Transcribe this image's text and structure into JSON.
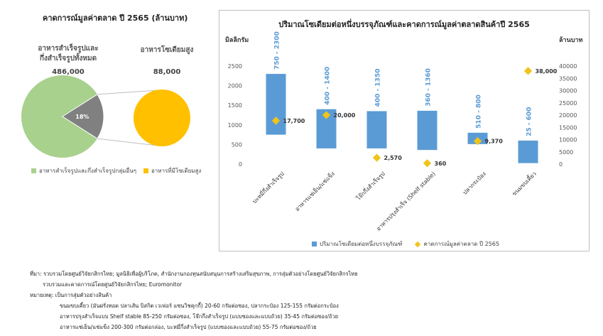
{
  "left": {
    "title": "คาดการณ์มูลค่าตลาด ปี 2565 (ล้านบาท)",
    "cat1_label_line1": "อาหารสำเร็จรูปและ",
    "cat1_label_line2": "กึ่งสำเร็จรูปทั้งหมด",
    "cat1_value": "486,000",
    "cat2_label": "อาหารโซเดียมสูง",
    "cat2_value": "88,000",
    "pie_slice_label": "18%",
    "legend": [
      {
        "label": "อาหารสำเร็จรูปและกึ่งสำเร็จรูปกลุ่มอื่นๆ",
        "color": "#a9d18e"
      },
      {
        "label": "อาหารที่มีโซเดียมสูง",
        "color": "#ffc000"
      }
    ],
    "colors": {
      "green": "#a9d18e",
      "gray": "#808080",
      "yellow": "#ffc000"
    }
  },
  "chart_data": {
    "type": "bar",
    "title": "ปริมาณโซเดียมต่อหนึ่งบรรจุภัณฑ์และคาดการณ์มูลค่าตลาดสินค้าปี 2565",
    "ylabel": "มิลลิกรัม",
    "y2label": "ล้านบาท",
    "ylim": [
      0,
      2500
    ],
    "y_ticks": [
      0,
      500,
      1000,
      1500,
      2000,
      2500
    ],
    "y2lim": [
      0,
      40000
    ],
    "y2_ticks": [
      0,
      5000,
      10000,
      15000,
      20000,
      25000,
      30000,
      35000,
      40000
    ],
    "categories": [
      "บะหมี่กึ่งสำเร็จรูป",
      "อาหารแช่เย็น/แช่แข็ง",
      "โจ๊กกึ่งสำเร็จรูป",
      "อาหารปรุงสำเร็จ (Shelf stable)",
      "ปลากระป๋อง",
      "ขนมขบเคี้ยว"
    ],
    "series": [
      {
        "name": "ปริมาณโซเดียมต่อหนึ่งบรรจุภัณฑ์",
        "type": "floating-bar",
        "low": [
          750,
          400,
          400,
          360,
          510,
          25
        ],
        "high": [
          2300,
          1400,
          1350,
          1360,
          800,
          600
        ],
        "range_labels": [
          "750 - 2300",
          "400 - 1400",
          "400 - 1350",
          "360 - 1360",
          "510 - 800",
          "25 - 600"
        ],
        "color": "#5b9bd5"
      },
      {
        "name": "คาดการณ์มูลค่าตลาด ปี 2565",
        "type": "scatter",
        "axis": "right",
        "values": [
          17700,
          20000,
          2570,
          360,
          9370,
          38000
        ],
        "value_labels": [
          "17,700",
          "20,000",
          "2,570",
          "360",
          "9,370",
          "38,000"
        ],
        "color": "#f0c419"
      }
    ],
    "grid": false,
    "legend_position": "bottom"
  },
  "notes": {
    "line1": "ที่มา: รวบรวมโดยศูนย์วิจัยกสิกรไทย; มูลนิธิเพื่อผู้บริโภค, สำนักงานกองทุนสนับสนุนการสร้างเสริมสุขภาพ, การสุ่มตัวอย่างโดยศูนย์วิจัยกสิกรไทย",
    "line2": "รวบรวมและคาดการณ์โดยศูนย์วิจัยกสิกรไทย; Euromonitor",
    "line3": "หมายเหตุ: เป็นการสุ่มตัวอย่างสินค้า",
    "line4": "ขนมขบเคี้ยว (มันฝรั่งทอด ปลาเส้น บิสกิต เวเฟอร์ แซนวิชคุกกี้) 20-60 กรัมต่อซอง, ปลากระป๋อง 125-155 กรัมต่อกระป๋อง",
    "line5": "อาหารปรุงสำเร็จแบบ Shelf stable 85-250 กรัมต่อซอง, โจ๊กกึ่งสำเร็จรูป (แบบซองและแบบถ้วย) 35-45 กรัมต่อซอง/ถ้วย",
    "line6": "อาหารแช่เย็น/แช่แข็ง 200-300 กรัมต่อกล่อง, บะหมี่กึ่งสำเร็จรูป (แบบซองและแบบถ้วย) 55-75 กรัมต่อซอง/ถ้วย"
  }
}
